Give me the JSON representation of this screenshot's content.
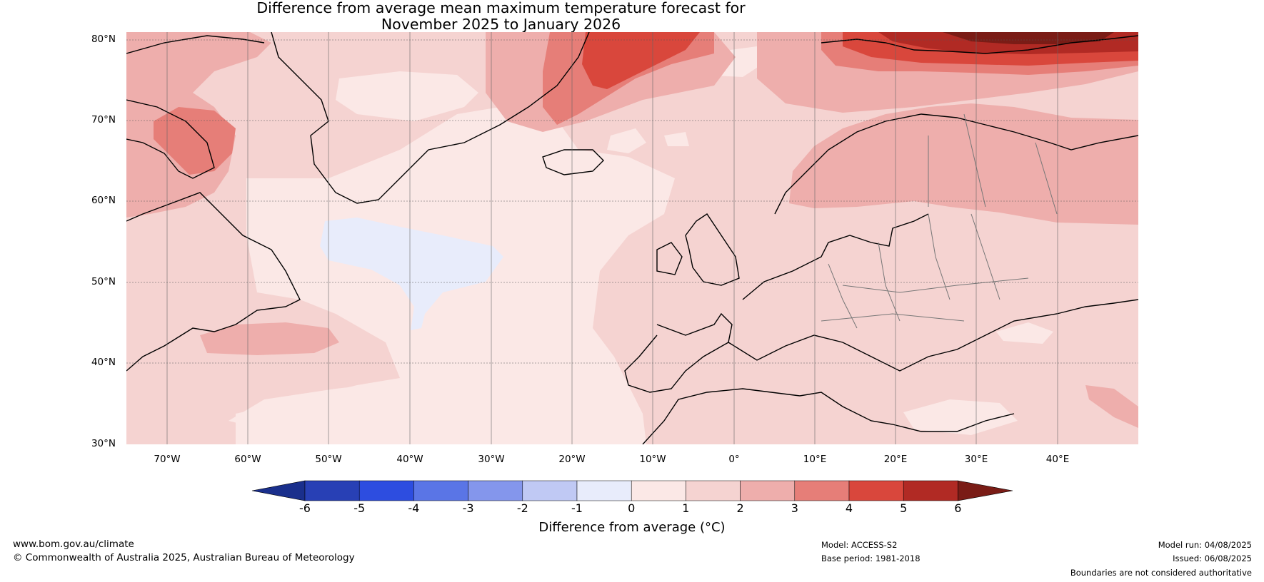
{
  "title": {
    "line1": "Difference from average mean maximum temperature forecast for",
    "line2": "November 2025 to January 2026"
  },
  "map": {
    "region": "North Atlantic and Europe",
    "lat_labels": [
      "80°N",
      "70°N",
      "60°N",
      "50°N",
      "40°N",
      "30°N"
    ],
    "lon_labels": [
      "70°W",
      "60°W",
      "50°W",
      "40°W",
      "30°W",
      "20°W",
      "10°W",
      "0°",
      "10°E",
      "20°E",
      "30°E",
      "40°E"
    ],
    "lat_range": [
      30,
      81
    ],
    "lon_range": [
      -75,
      50
    ],
    "anomaly_regions": [
      {
        "area": "Eastern North Atlantic, Western Europe, Mediterranean",
        "value_range": "1 to 2"
      },
      {
        "area": "Central North Atlantic",
        "value_range": "0 to 1"
      },
      {
        "area": "South of Greenland (approx. 35–45°W, 52–58°N)",
        "value_range": "-1 to 0"
      },
      {
        "area": "Scandinavia, Finland, NW Russia",
        "value_range": "2 to 3"
      },
      {
        "area": "East Greenland Sea",
        "value_range": "3 to 5"
      },
      {
        "area": "Svalbard and Barents Sea",
        "value_range": "4 to 6"
      },
      {
        "area": "Baffin Island / Canadian Arctic",
        "value_range": "2 to 4"
      }
    ]
  },
  "colorbar": {
    "ticks": [
      "-6",
      "-5",
      "-4",
      "-3",
      "-2",
      "-1",
      "0",
      "1",
      "2",
      "3",
      "4",
      "5",
      "6"
    ],
    "colors": [
      "#1a2f8c",
      "#2840b5",
      "#2d4de0",
      "#5a75e6",
      "#8496ec",
      "#c0c9f4",
      "#e8ecfb",
      "#fbe8e6",
      "#f5d3d1",
      "#eeaeac",
      "#e67e78",
      "#d9473c",
      "#b12a24",
      "#7a1c16"
    ],
    "label": "Difference from average (°C)"
  },
  "footer": {
    "website": "www.bom.gov.au/climate",
    "copyright": "© Commonwealth of Australia 2025, Australian Bureau of Meteorology",
    "model": "Model: ACCESS-S2",
    "base_period": "Base period: 1981-2018",
    "model_run": "Model run: 04/08/2025",
    "issued": "Issued: 06/08/2025",
    "disclaimer": "Boundaries are not considered authoritative"
  }
}
